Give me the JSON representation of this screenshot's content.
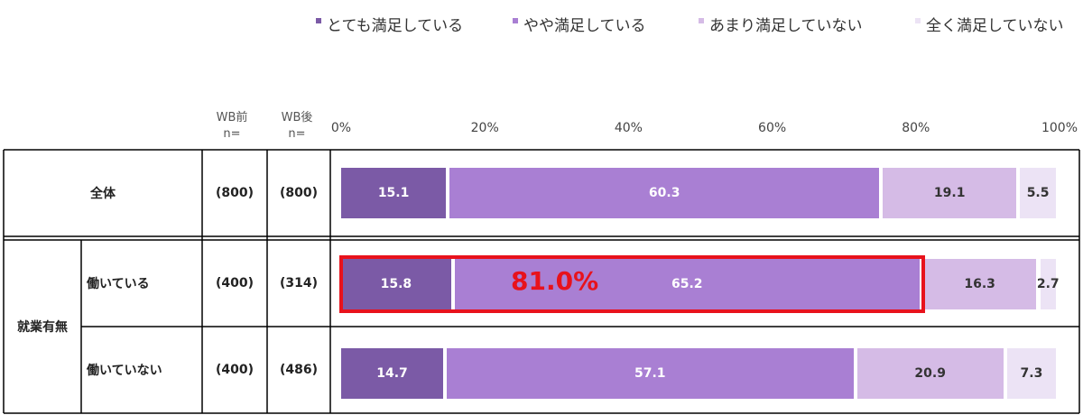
{
  "colors": {
    "very_satisfied": "#7b5aa6",
    "somewhat_satisfied": "#a97fd3",
    "not_very_satisfied": "#d5bbe6",
    "not_at_all_satisfied": "#ece3f5",
    "highlight": "#e8121c",
    "dark_label": "#333333",
    "light_label": "#ffffff"
  },
  "headers": {
    "wb_before": "WB前",
    "wb_after": "WB後",
    "n_label": "n="
  },
  "chart_data": {
    "type": "bar",
    "orientation": "horizontal",
    "stacked": true,
    "xlim": [
      0,
      100
    ],
    "x_ticks": [
      "0%",
      "20%",
      "40%",
      "60%",
      "80%",
      "100%"
    ],
    "legend_position": "top",
    "series": [
      {
        "name": "とても満足している",
        "color": "#7b5aa6",
        "values": [
          15.1,
          15.8,
          14.7
        ]
      },
      {
        "name": "やや満足している",
        "color": "#a97fd3",
        "values": [
          60.3,
          65.2,
          57.1
        ]
      },
      {
        "name": "あまり満足していない",
        "color": "#d5bbe6",
        "values": [
          19.1,
          16.3,
          20.9
        ]
      },
      {
        "name": "全く満足していない",
        "color": "#ece3f5",
        "values": [
          5.5,
          2.7,
          7.3
        ]
      }
    ],
    "rows": [
      {
        "group": "",
        "label": "全体",
        "n_before": "(800)",
        "n_after": "(800)"
      },
      {
        "group": "就業有無",
        "label": "働いている",
        "n_before": "(400)",
        "n_after": "(314)"
      },
      {
        "group": "就業有無",
        "label": "働いていない",
        "n_before": "(400)",
        "n_after": "(486)"
      }
    ],
    "group_label": "就業有無",
    "annotation": {
      "text": "81.0%",
      "row": 1,
      "from": 0,
      "to": 81.0
    }
  }
}
